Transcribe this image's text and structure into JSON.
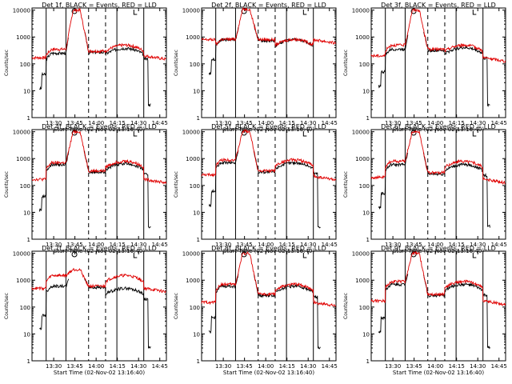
{
  "chart_data": [
    {
      "type": "line",
      "title": "Det 1f, BLACK = Events, RED = LLD",
      "xlabel": "Start Time (02-Nov-02 13:16:40)",
      "ylabel": "Counts/sec",
      "yscale": "log",
      "ylim": [
        1,
        12000
      ],
      "x_ticks": [
        "13:30",
        "13:45",
        "14:00",
        "14:15",
        "14:30",
        "14:45"
      ],
      "y_ticks": [
        "1",
        "10",
        "100",
        "1000",
        "10000"
      ],
      "profile": {
        "pre_red": 170,
        "pre_black": 40,
        "mid_red": 350,
        "mid_black": 250,
        "peak": 10000,
        "dip": 300,
        "post_red": 500,
        "post_black": 380,
        "end_red": 200,
        "tail_black": 3
      }
    },
    {
      "type": "line",
      "title": "Det 2f, BLACK = Events, RED = LLD",
      "xlabel": "Start Time (02-Nov-02 13:16:40)",
      "ylabel": "Counts/sec",
      "yscale": "log",
      "ylim": [
        1,
        12000
      ],
      "x_ticks": [
        "13:30",
        "13:45",
        "14:00",
        "14:15",
        "14:30",
        "14:45"
      ],
      "y_ticks": [
        "1",
        "10",
        "100",
        "1000",
        "10000"
      ],
      "profile": {
        "pre_red": 800,
        "pre_black": 150,
        "mid_red": 820,
        "mid_black": 800,
        "peak": 11000,
        "dip": 800,
        "post_red": 820,
        "post_black": 800,
        "end_red": 800,
        "tail_black": null
      }
    },
    {
      "type": "line",
      "title": "Det 3f, BLACK = Events, RED = LLD",
      "xlabel": "Start Time (02-Nov-02 13:16:40)",
      "ylabel": "Counts/sec",
      "yscale": "log",
      "ylim": [
        1,
        12000
      ],
      "x_ticks": [
        "13:30",
        "13:45",
        "14:00",
        "14:15",
        "14:30",
        "14:45"
      ],
      "y_ticks": [
        "1",
        "10",
        "100",
        "1000",
        "10000"
      ],
      "profile": {
        "pre_red": 200,
        "pre_black": 50,
        "mid_red": 500,
        "mid_black": 350,
        "peak": 10000,
        "dip": 350,
        "post_red": 500,
        "post_black": 400,
        "end_red": 170,
        "tail_black": 3
      }
    },
    {
      "type": "line",
      "title": "Det 4f, BLACK = Events, RED = LLD",
      "xlabel": "Start Time (02-Nov-02 13:16:40)",
      "ylabel": "Counts/sec",
      "yscale": "log",
      "ylim": [
        1,
        12000
      ],
      "x_ticks": [
        "13:30",
        "13:45",
        "14:00",
        "14:15",
        "14:30",
        "14:45"
      ],
      "y_ticks": [
        "1",
        "10",
        "100",
        "1000",
        "10000"
      ],
      "profile": {
        "pre_red": 170,
        "pre_black": 40,
        "mid_red": 700,
        "mid_black": 600,
        "peak": 10000,
        "dip": 350,
        "post_red": 800,
        "post_black": 650,
        "end_red": 170,
        "tail_black": 3
      }
    },
    {
      "type": "line",
      "title": "Det 5f, BLACK = Events, RED = LLD",
      "xlabel": "Start Time (02-Nov-02 13:16:40)",
      "ylabel": "Counts/sec",
      "yscale": "log",
      "ylim": [
        1,
        12000
      ],
      "x_ticks": [
        "13:30",
        "13:45",
        "14:00",
        "14:15",
        "14:30",
        "14:45"
      ],
      "y_ticks": [
        "1",
        "10",
        "100",
        "1000",
        "10000"
      ],
      "profile": {
        "pre_red": 250,
        "pre_black": 60,
        "mid_red": 900,
        "mid_black": 700,
        "peak": 10500,
        "dip": 350,
        "post_red": 900,
        "post_black": 700,
        "end_red": 220,
        "tail_black": 3
      }
    },
    {
      "type": "line",
      "title": "Det 6f, BLACK = Events, RED = LLD",
      "xlabel": "Start Time (02-Nov-02 13:16:40)",
      "ylabel": "Counts/sec",
      "yscale": "log",
      "ylim": [
        1,
        12000
      ],
      "x_ticks": [
        "13:30",
        "13:45",
        "14:00",
        "14:15",
        "14:30",
        "14:45"
      ],
      "y_ticks": [
        "1",
        "10",
        "100",
        "1000",
        "10000"
      ],
      "profile": {
        "pre_red": 200,
        "pre_black": 50,
        "mid_red": 800,
        "mid_black": 600,
        "peak": 10000,
        "dip": 300,
        "post_red": 800,
        "post_black": 600,
        "end_red": 170,
        "tail_black": 3
      }
    },
    {
      "type": "line",
      "title": "Det 7f, BLACK = Events, RED = LLD",
      "xlabel": "Start Time (02-Nov-02 13:16:40)",
      "ylabel": "Counts/sec",
      "yscale": "log",
      "ylim": [
        1,
        12000
      ],
      "x_ticks": [
        "13:30",
        "13:45",
        "14:00",
        "14:15",
        "14:30",
        "14:45"
      ],
      "y_ticks": [
        "1",
        "10",
        "100",
        "1000",
        "10000"
      ],
      "profile": {
        "pre_red": 500,
        "pre_black": 50,
        "mid_red": 1500,
        "mid_black": 600,
        "peak": 2500,
        "dip": 600,
        "post_red": 1500,
        "post_black": 500,
        "end_red": 500,
        "tail_black": 3
      }
    },
    {
      "type": "line",
      "title": "Det 8f, BLACK = Events, RED = LLD",
      "xlabel": "Start Time (02-Nov-02 13:16:40)",
      "ylabel": "Counts/sec",
      "yscale": "log",
      "ylim": [
        1,
        12000
      ],
      "x_ticks": [
        "13:30",
        "13:45",
        "14:00",
        "14:15",
        "14:30",
        "14:45"
      ],
      "y_ticks": [
        "1",
        "10",
        "100",
        "1000",
        "10000"
      ],
      "profile": {
        "pre_red": 150,
        "pre_black": 40,
        "mid_red": 700,
        "mid_black": 600,
        "peak": 10000,
        "dip": 300,
        "post_red": 700,
        "post_black": 600,
        "end_red": 150,
        "tail_black": 3
      }
    },
    {
      "type": "line",
      "title": "Det 9f, BLACK = Events, RED = LLD",
      "xlabel": "Start Time (02-Nov-02 13:16:40)",
      "ylabel": "Counts/sec",
      "yscale": "log",
      "ylim": [
        1,
        12000
      ],
      "x_ticks": [
        "13:30",
        "13:45",
        "14:00",
        "14:15",
        "14:30",
        "14:45"
      ],
      "y_ticks": [
        "1",
        "10",
        "100",
        "1000",
        "10000"
      ],
      "profile": {
        "pre_red": 170,
        "pre_black": 40,
        "mid_red": 900,
        "mid_black": 700,
        "peak": 10000,
        "dip": 300,
        "post_red": 900,
        "post_black": 700,
        "end_red": 170,
        "tail_black": 3
      }
    }
  ],
  "colors": {
    "events": "#000000",
    "lld": "#e00000",
    "axes": "#000000",
    "background": "#ffffff"
  }
}
